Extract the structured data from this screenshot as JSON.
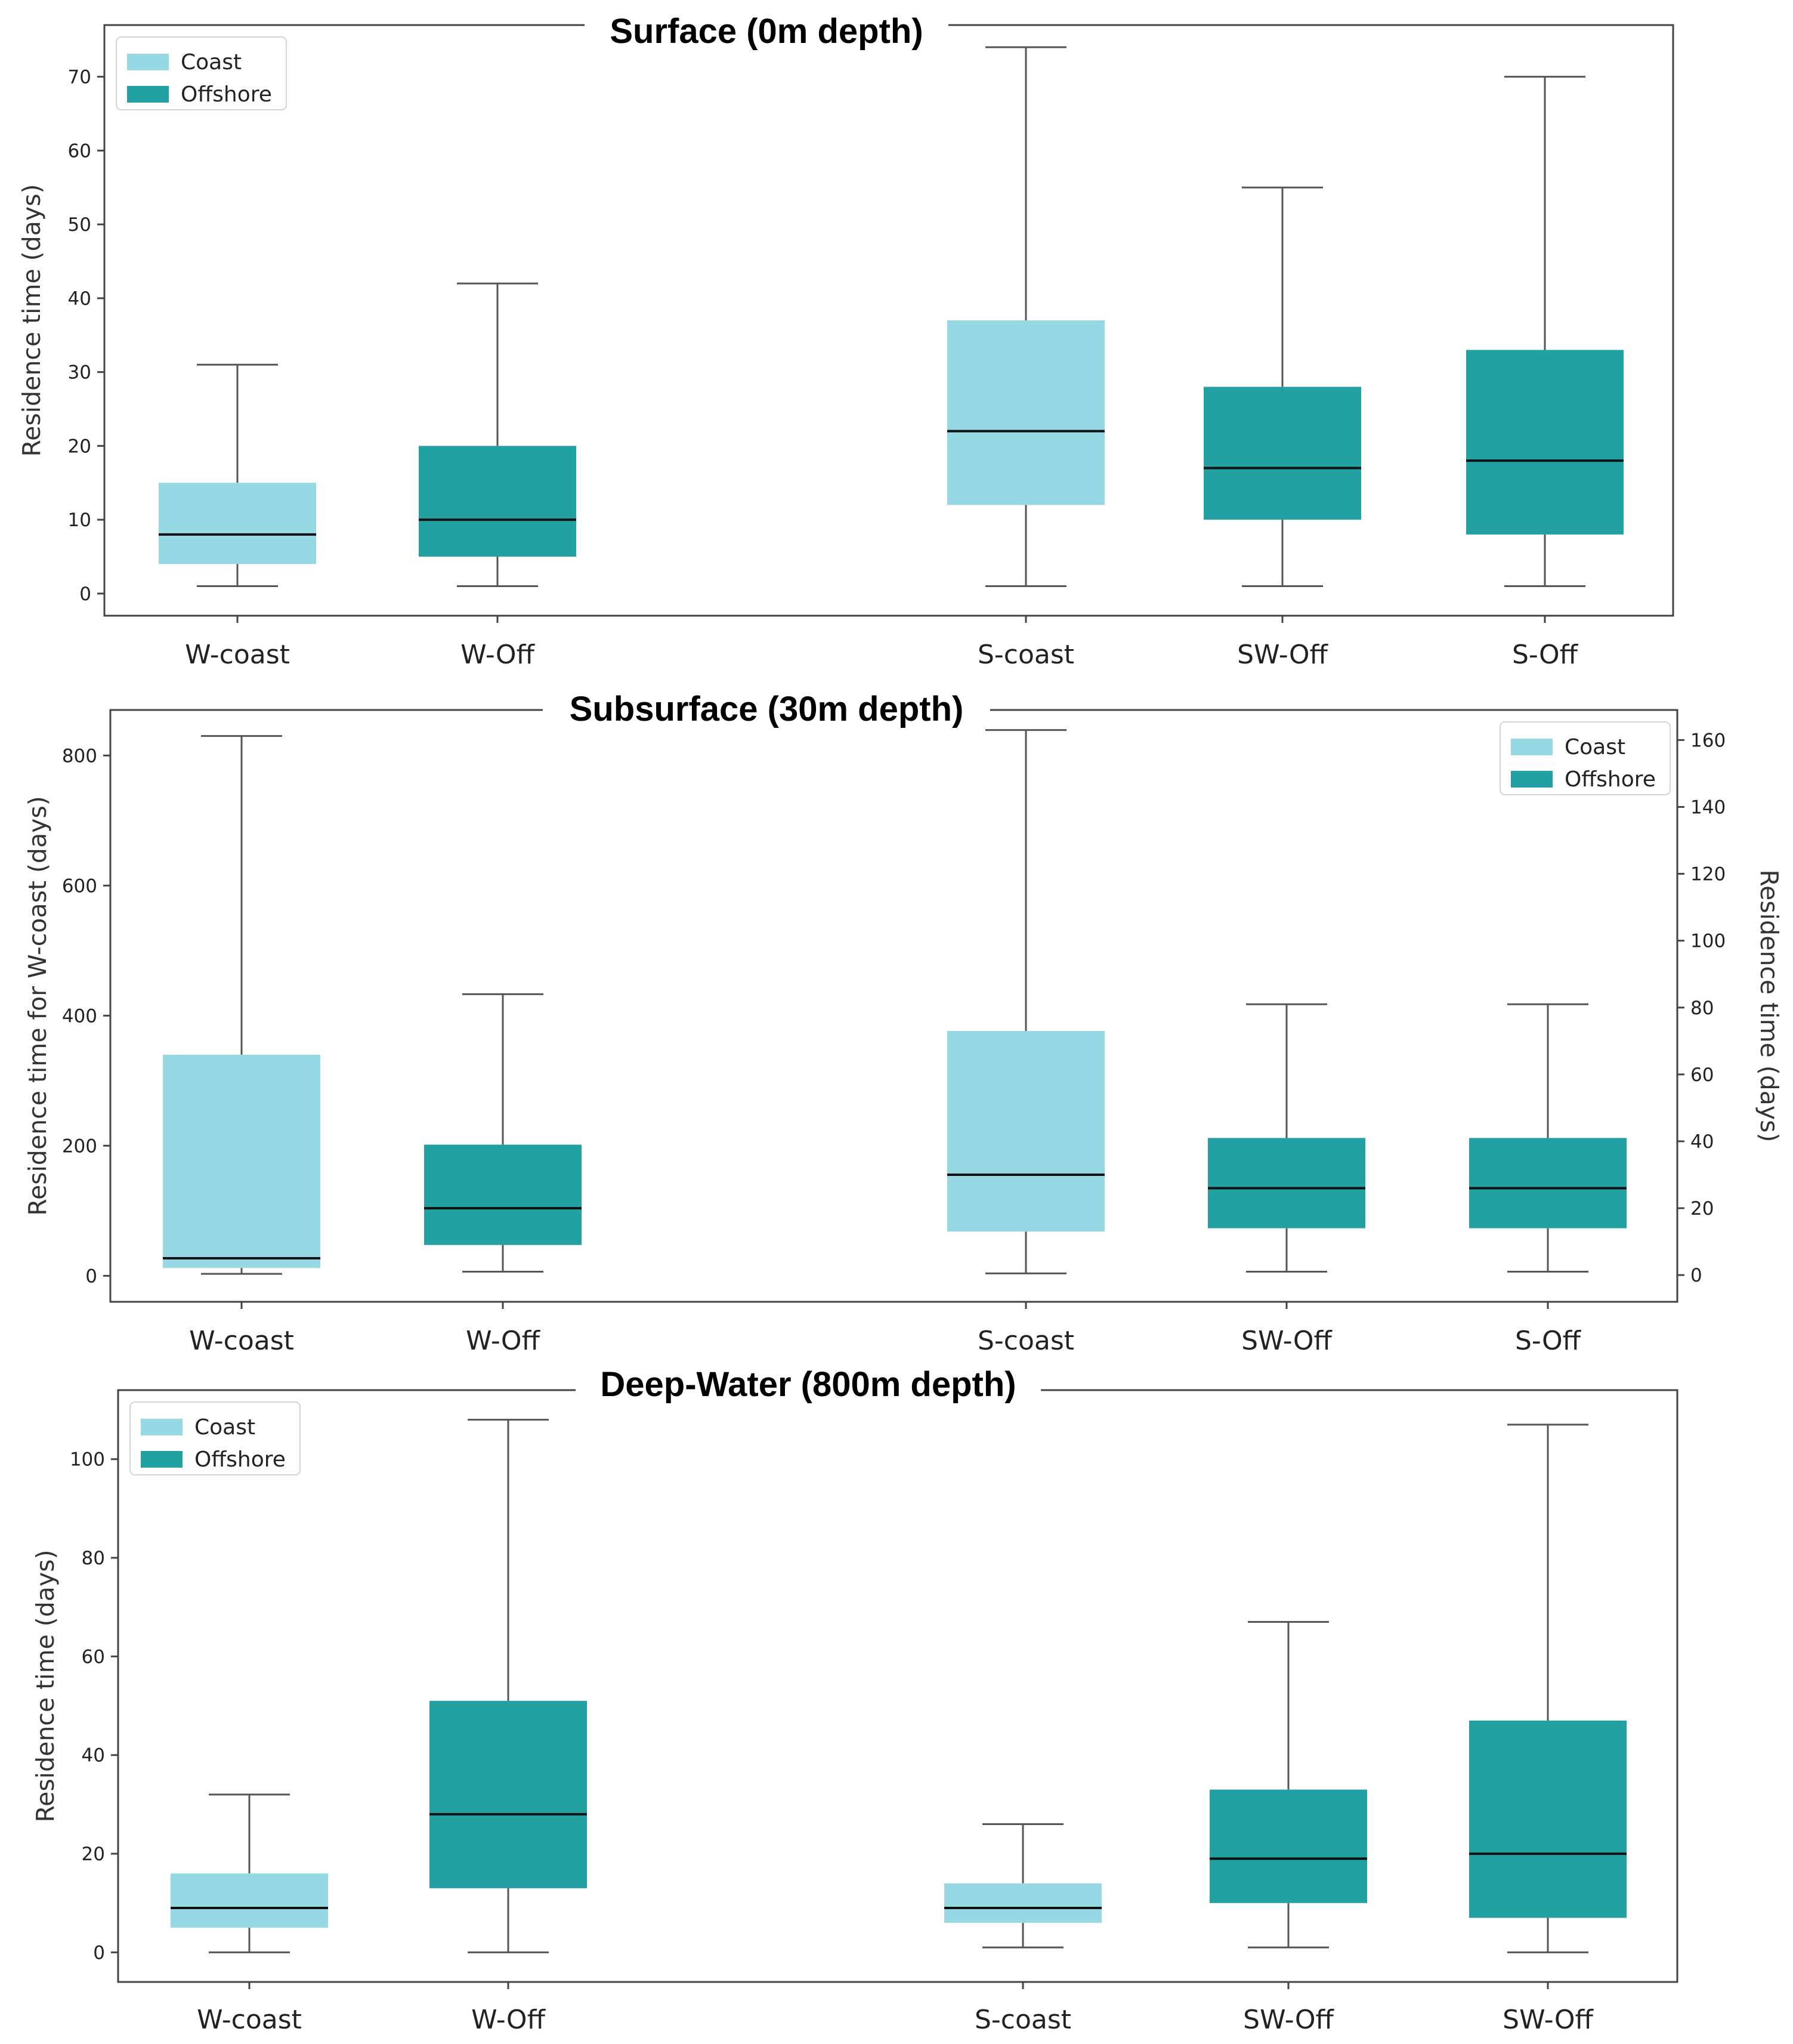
{
  "chart_data": [
    {
      "type": "boxplot",
      "title": "Surface (0m depth)",
      "ylabel": "Residence time (days)",
      "ylim": [
        -3,
        77
      ],
      "yticks": [
        0,
        10,
        20,
        30,
        40,
        50,
        60,
        70
      ],
      "legend": {
        "position": "top-left",
        "entries": [
          {
            "label": "Coast",
            "color": "#96d9e5"
          },
          {
            "label": "Offshore",
            "color": "#22a0a2"
          }
        ]
      },
      "categories": [
        "W-coast",
        "W-Off",
        "S-coast",
        "SW-Off",
        "S-Off"
      ],
      "boxes": [
        {
          "label": "W-coast",
          "group": "Coast",
          "color": "#96d9e5",
          "min": 1,
          "q1": 4,
          "median": 8,
          "q3": 15,
          "max": 31
        },
        {
          "label": "W-Off",
          "group": "Offshore",
          "color": "#22a0a2",
          "min": 1,
          "q1": 5,
          "median": 10,
          "q3": 20,
          "max": 42
        },
        {
          "label": "S-coast",
          "group": "Coast",
          "color": "#96d9e5",
          "min": 1,
          "q1": 12,
          "median": 22,
          "q3": 37,
          "max": 74
        },
        {
          "label": "SW-Off",
          "group": "Offshore",
          "color": "#22a0a2",
          "min": 1,
          "q1": 10,
          "median": 17,
          "q3": 28,
          "max": 55
        },
        {
          "label": "S-Off",
          "group": "Offshore",
          "color": "#22a0a2",
          "min": 1,
          "q1": 8,
          "median": 18,
          "q3": 33,
          "max": 70
        }
      ]
    },
    {
      "type": "boxplot",
      "title": "Subsurface (30m depth)",
      "ylabel": "Residence time for W-coast (days)",
      "ylabel_right": "Residence time (days)",
      "ylim": [
        -40,
        870
      ],
      "yticks": [
        0,
        200,
        400,
        600,
        800
      ],
      "ylim_right": [
        -8,
        169
      ],
      "yticks_right": [
        0,
        20,
        40,
        60,
        80,
        100,
        120,
        140,
        160
      ],
      "legend": {
        "position": "top-right",
        "entries": [
          {
            "label": "Coast",
            "color": "#96d9e5"
          },
          {
            "label": "Offshore",
            "color": "#22a0a2"
          }
        ]
      },
      "categories": [
        "W-coast",
        "W-Off",
        "S-coast",
        "SW-Off",
        "S-Off"
      ],
      "boxes": [
        {
          "label": "W-coast",
          "group": "Coast",
          "color": "#96d9e5",
          "axis": "left",
          "min": 3,
          "q1": 12,
          "median": 27,
          "q3": 340,
          "max": 830
        },
        {
          "label": "W-Off",
          "group": "Offshore",
          "color": "#22a0a2",
          "axis": "right",
          "min": 1,
          "q1": 9,
          "median": 20,
          "q3": 39,
          "max": 84
        },
        {
          "label": "S-coast",
          "group": "Coast",
          "color": "#96d9e5",
          "axis": "right",
          "min": 0.5,
          "q1": 13,
          "median": 30,
          "q3": 73,
          "max": 163
        },
        {
          "label": "SW-Off",
          "group": "Offshore",
          "color": "#22a0a2",
          "axis": "right",
          "min": 1,
          "q1": 14,
          "median": 26,
          "q3": 41,
          "max": 81
        },
        {
          "label": "S-Off",
          "group": "Offshore",
          "color": "#22a0a2",
          "axis": "right",
          "min": 1,
          "q1": 14,
          "median": 26,
          "q3": 41,
          "max": 81
        }
      ]
    },
    {
      "type": "boxplot",
      "title": "Deep-Water (800m depth)",
      "ylabel": "Residence time (days)",
      "ylim": [
        -6,
        114
      ],
      "yticks": [
        0,
        20,
        40,
        60,
        80,
        100
      ],
      "legend": {
        "position": "top-left",
        "entries": [
          {
            "label": "Coast",
            "color": "#96d9e5"
          },
          {
            "label": "Offshore",
            "color": "#22a0a2"
          }
        ]
      },
      "categories": [
        "W-coast",
        "W-Off",
        "S-coast",
        "SW-Off",
        "SW-Off"
      ],
      "boxes": [
        {
          "label": "W-coast",
          "group": "Coast",
          "color": "#96d9e5",
          "min": 0,
          "q1": 5,
          "median": 9,
          "q3": 16,
          "max": 32
        },
        {
          "label": "W-Off",
          "group": "Offshore",
          "color": "#22a0a2",
          "min": 0,
          "q1": 13,
          "median": 28,
          "q3": 51,
          "max": 108
        },
        {
          "label": "S-coast",
          "group": "Coast",
          "color": "#96d9e5",
          "min": 1,
          "q1": 6,
          "median": 9,
          "q3": 14,
          "max": 26
        },
        {
          "label": "SW-Off",
          "group": "Offshore",
          "color": "#22a0a2",
          "min": 1,
          "q1": 10,
          "median": 19,
          "q3": 33,
          "max": 67
        },
        {
          "label": "SW-Off",
          "group": "Offshore",
          "color": "#22a0a2",
          "min": 0,
          "q1": 7,
          "median": 20,
          "q3": 47,
          "max": 107
        }
      ]
    }
  ]
}
